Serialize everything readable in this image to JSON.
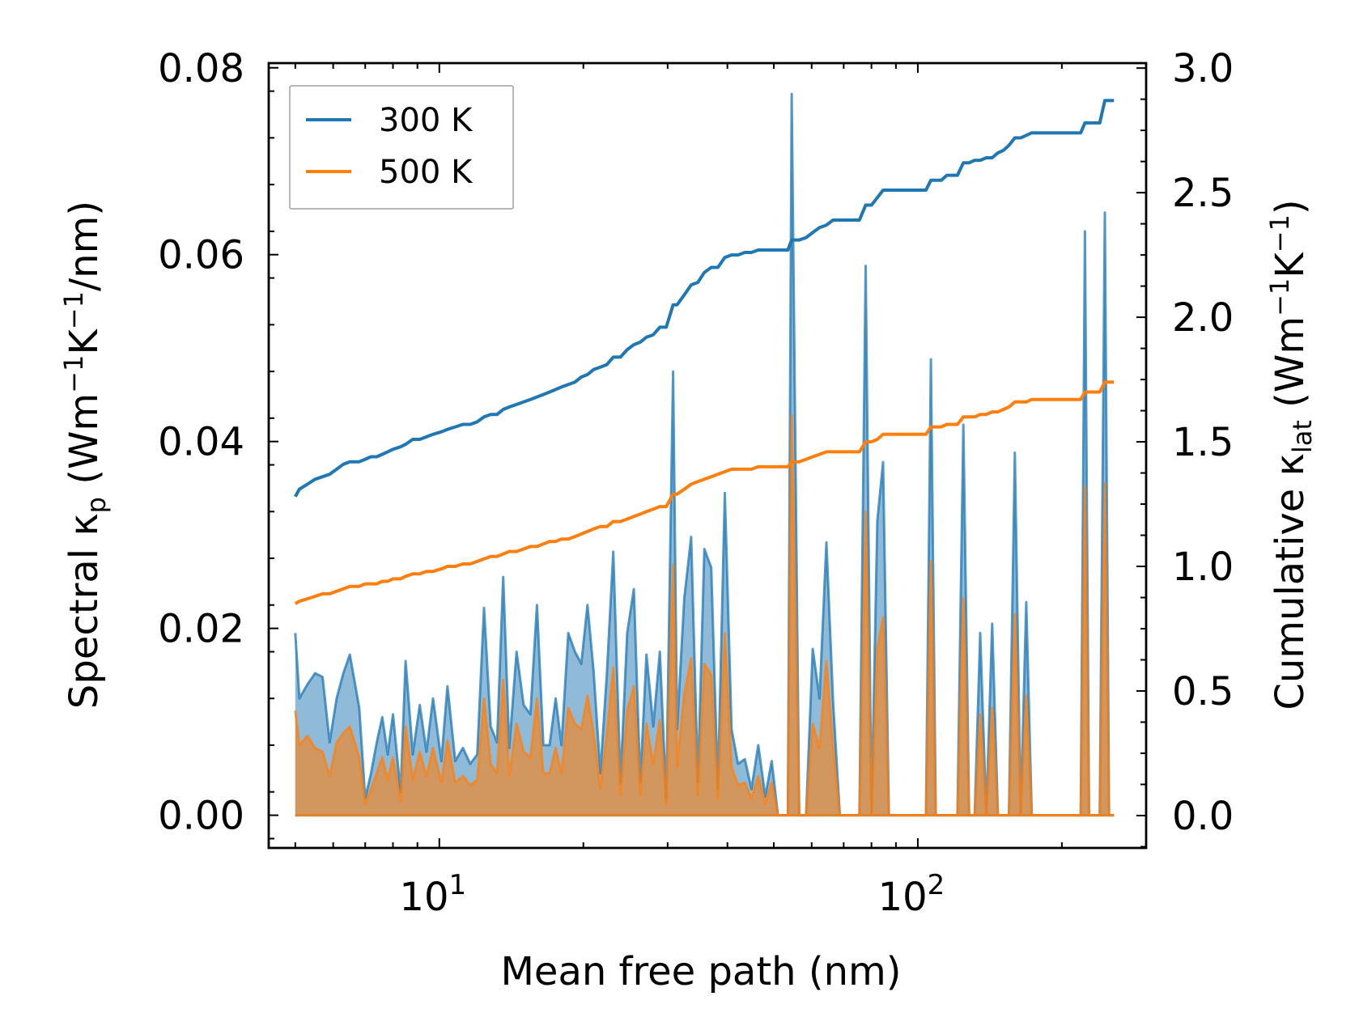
{
  "chart_data": {
    "type": "line",
    "xscale": "log",
    "xlabel": "Mean free path (nm)",
    "ylabel_left": {
      "pre": "Spectral κ",
      "sub": "p",
      "post": " (Wm",
      "sup1": "−1",
      "mid": "K",
      "sup2": "−1",
      "tail": "/nm)"
    },
    "ylabel_right": {
      "pre": "Cumulative κ",
      "sub": "lat",
      "post": " (Wm",
      "sup1": "−1",
      "mid": "K",
      "sup2": "−1",
      "tail": ")"
    },
    "xlim": [
      4.4,
      300
    ],
    "ylim_left": [
      -0.0035,
      0.0805
    ],
    "ylim_right": [
      -0.13,
      3.02
    ],
    "x_ticks": [
      {
        "base": "10",
        "exp": "1",
        "value": 10
      },
      {
        "base": "10",
        "exp": "2",
        "value": 100
      }
    ],
    "y_left_ticks": [
      {
        "label": "0.00",
        "value": 0.0
      },
      {
        "label": "0.02",
        "value": 0.02
      },
      {
        "label": "0.04",
        "value": 0.04
      },
      {
        "label": "0.06",
        "value": 0.06
      },
      {
        "label": "0.08",
        "value": 0.08
      }
    ],
    "y_right_ticks": [
      {
        "label": "0.0",
        "value": 0.0
      },
      {
        "label": "0.5",
        "value": 0.5
      },
      {
        "label": "1.0",
        "value": 1.0
      },
      {
        "label": "1.5",
        "value": 1.5
      },
      {
        "label": "2.0",
        "value": 2.0
      },
      {
        "label": "2.5",
        "value": 2.5
      },
      {
        "label": "3.0",
        "value": 3.0
      }
    ],
    "legend": {
      "position": "upper-left",
      "entries": [
        {
          "label": "300 K",
          "color": "#1f77b4"
        },
        {
          "label": "500 K",
          "color": "#ff7f0e"
        }
      ]
    },
    "series": [
      {
        "name": "300 K",
        "color": "#1f77b4",
        "axis": "left",
        "kind": "spectral-filled",
        "x": [
          5.0,
          5.1,
          5.3,
          5.5,
          5.7,
          5.9,
          6.1,
          6.3,
          6.5,
          6.8,
          7.0,
          7.2,
          7.4,
          7.6,
          7.8,
          8.0,
          8.3,
          8.5,
          8.8,
          9.1,
          9.4,
          9.7,
          10.1,
          10.4,
          10.8,
          11.2,
          11.6,
          12.0,
          12.4,
          12.8,
          13.2,
          13.6,
          14.0,
          14.5,
          15.0,
          15.5,
          16.0,
          16.5,
          17.0,
          17.5,
          18.0,
          18.6,
          19.2,
          19.8,
          20.4,
          21.0,
          21.7,
          22.4,
          23.1,
          23.9,
          24.7,
          25.5,
          26.3,
          27.1,
          28.0,
          28.9,
          29.8,
          30.8,
          31.4,
          32.5,
          33.6,
          34.7,
          35.8,
          37.0,
          38.2,
          39.5,
          40.8,
          42.1,
          43.5,
          44.9,
          46.4,
          48.0,
          49.5,
          51.0,
          52.7,
          53.5,
          54.5,
          56.5,
          58.4,
          60.3,
          62.3,
          64.4,
          66.5,
          68.7,
          71.0,
          73.3,
          75.5,
          77.8,
          80.0,
          82.3,
          84.6,
          87.0,
          89.5,
          92.0,
          95.0,
          98.0,
          101.0,
          104.0,
          106.5,
          109.0,
          112.0,
          115.0,
          118.0,
          121.0,
          124.5,
          128.0,
          131.5,
          135.0,
          139.0,
          143.0,
          147.0,
          151.0,
          155.0,
          159.5,
          164.0,
          168.5,
          173.0,
          178.0,
          183.0,
          189.0,
          195.0,
          201.0,
          207.0,
          213.0,
          219.0,
          223.5,
          228.0,
          234.0,
          240.0,
          246.0,
          251.0,
          257.0
        ],
        "spectral": [
          0.0195,
          0.0125,
          0.014,
          0.0152,
          0.0148,
          0.0078,
          0.0125,
          0.0152,
          0.0172,
          0.0115,
          0.0018,
          0.0045,
          0.0078,
          0.0105,
          0.0065,
          0.0108,
          0.0025,
          0.0165,
          0.0065,
          0.0118,
          0.0068,
          0.0125,
          0.0058,
          0.0138,
          0.0058,
          0.0072,
          0.0055,
          0.0065,
          0.0222,
          0.0095,
          0.0078,
          0.0255,
          0.0072,
          0.0175,
          0.0118,
          0.0108,
          0.0225,
          0.0075,
          0.0075,
          0.0125,
          0.0075,
          0.0195,
          0.0175,
          0.0162,
          0.0225,
          0.0155,
          0.0045,
          0.0152,
          0.0282,
          0.0035,
          0.0195,
          0.0242,
          0.0035,
          0.0172,
          0.0095,
          0.0175,
          0.0018,
          0.0475,
          0.0092,
          0.0232,
          0.0298,
          0.0035,
          0.0285,
          0.0265,
          0.0028,
          0.0345,
          0.0092,
          0.0055,
          0.006,
          0.0028,
          0.0075,
          0.002,
          0.0058,
          0.0,
          0.0,
          0.0,
          0.0772,
          0.0,
          0.0,
          0.0178,
          0.0125,
          0.0292,
          0.0122,
          0.0,
          0.0,
          0.0,
          0.0,
          0.0588,
          0.0,
          0.0315,
          0.0378,
          0.0,
          0.0,
          0.0,
          0.0,
          0.0,
          0.0,
          0.0,
          0.0488,
          0.0,
          0.0,
          0.0,
          0.0,
          0.0,
          0.0418,
          0.0,
          0.0,
          0.0195,
          0.0,
          0.0205,
          0.0,
          0.0,
          0.0,
          0.0388,
          0.0,
          0.0228,
          0.0,
          0.0,
          0.0,
          0.0,
          0.0,
          0.0,
          0.0,
          0.0,
          0.0,
          0.0625,
          0.0,
          0.0,
          0.0,
          0.0645,
          0.0,
          0.0
        ],
        "cumulative": [
          1.28,
          1.31,
          1.33,
          1.35,
          1.36,
          1.37,
          1.39,
          1.41,
          1.42,
          1.42,
          1.43,
          1.44,
          1.44,
          1.45,
          1.46,
          1.47,
          1.48,
          1.49,
          1.51,
          1.51,
          1.52,
          1.53,
          1.54,
          1.55,
          1.56,
          1.57,
          1.57,
          1.58,
          1.6,
          1.61,
          1.61,
          1.63,
          1.64,
          1.65,
          1.66,
          1.67,
          1.68,
          1.69,
          1.7,
          1.71,
          1.72,
          1.73,
          1.74,
          1.76,
          1.77,
          1.79,
          1.8,
          1.81,
          1.84,
          1.84,
          1.87,
          1.89,
          1.9,
          1.92,
          1.93,
          1.96,
          1.96,
          2.05,
          2.05,
          2.09,
          2.13,
          2.14,
          2.18,
          2.2,
          2.2,
          2.24,
          2.25,
          2.25,
          2.26,
          2.26,
          2.27,
          2.27,
          2.27,
          2.27,
          2.27,
          2.27,
          2.31,
          2.31,
          2.32,
          2.34,
          2.36,
          2.37,
          2.39,
          2.39,
          2.39,
          2.39,
          2.39,
          2.45,
          2.45,
          2.48,
          2.51,
          2.51,
          2.51,
          2.51,
          2.51,
          2.51,
          2.51,
          2.51,
          2.55,
          2.55,
          2.55,
          2.57,
          2.57,
          2.57,
          2.62,
          2.62,
          2.63,
          2.63,
          2.64,
          2.64,
          2.66,
          2.67,
          2.69,
          2.72,
          2.72,
          2.73,
          2.74,
          2.74,
          2.74,
          2.74,
          2.74,
          2.74,
          2.74,
          2.74,
          2.74,
          2.78,
          2.78,
          2.78,
          2.78,
          2.87,
          2.87,
          2.87
        ]
      },
      {
        "name": "500 K",
        "color": "#ff7f0e",
        "axis": "left",
        "kind": "spectral-filled",
        "x": [
          5.0,
          5.1,
          5.3,
          5.5,
          5.7,
          5.9,
          6.1,
          6.3,
          6.5,
          6.8,
          7.0,
          7.2,
          7.4,
          7.6,
          7.8,
          8.0,
          8.3,
          8.5,
          8.8,
          9.1,
          9.4,
          9.7,
          10.1,
          10.4,
          10.8,
          11.2,
          11.6,
          12.0,
          12.4,
          12.8,
          13.2,
          13.6,
          14.0,
          14.5,
          15.0,
          15.5,
          16.0,
          16.5,
          17.0,
          17.5,
          18.0,
          18.6,
          19.2,
          19.8,
          20.4,
          21.0,
          21.7,
          22.4,
          23.1,
          23.9,
          24.7,
          25.5,
          26.3,
          27.1,
          28.0,
          28.9,
          29.8,
          30.8,
          31.4,
          32.5,
          33.6,
          34.7,
          35.8,
          37.0,
          38.2,
          39.5,
          40.8,
          42.1,
          43.5,
          44.9,
          46.4,
          48.0,
          49.5,
          51.0,
          52.7,
          53.5,
          54.5,
          56.5,
          58.4,
          60.3,
          62.3,
          64.4,
          66.5,
          68.7,
          71.0,
          73.3,
          75.5,
          77.8,
          80.0,
          82.3,
          84.6,
          87.0,
          89.5,
          92.0,
          95.0,
          98.0,
          101.0,
          104.0,
          106.5,
          109.0,
          112.0,
          115.0,
          118.0,
          121.0,
          124.5,
          128.0,
          131.5,
          135.0,
          139.0,
          143.0,
          147.0,
          151.0,
          155.0,
          159.5,
          164.0,
          168.5,
          173.0,
          178.0,
          183.0,
          189.0,
          195.0,
          201.0,
          207.0,
          213.0,
          219.0,
          223.5,
          228.0,
          234.0,
          240.0,
          246.0,
          251.0,
          257.0
        ],
        "spectral": [
          0.0112,
          0.0075,
          0.0085,
          0.0072,
          0.0068,
          0.0042,
          0.0078,
          0.0088,
          0.0095,
          0.0062,
          0.0012,
          0.0028,
          0.0045,
          0.0062,
          0.0038,
          0.0062,
          0.0015,
          0.0095,
          0.0038,
          0.0068,
          0.0042,
          0.0072,
          0.0035,
          0.008,
          0.0035,
          0.0042,
          0.0032,
          0.0038,
          0.0125,
          0.0055,
          0.0045,
          0.0145,
          0.0042,
          0.0098,
          0.0068,
          0.0062,
          0.0125,
          0.0045,
          0.0045,
          0.0072,
          0.0045,
          0.0115,
          0.0098,
          0.0092,
          0.0128,
          0.0088,
          0.0028,
          0.0088,
          0.0158,
          0.0022,
          0.0112,
          0.0138,
          0.0022,
          0.0098,
          0.0055,
          0.0102,
          0.0012,
          0.0268,
          0.0052,
          0.013,
          0.0168,
          0.0022,
          0.0162,
          0.015,
          0.0018,
          0.0195,
          0.0052,
          0.0032,
          0.0035,
          0.0018,
          0.0042,
          0.0012,
          0.0035,
          0.0,
          0.0,
          0.0,
          0.0428,
          0.0,
          0.0,
          0.0098,
          0.0072,
          0.0165,
          0.0072,
          0.0,
          0.0,
          0.0,
          0.0,
          0.0325,
          0.0,
          0.0178,
          0.0212,
          0.0,
          0.0,
          0.0,
          0.0,
          0.0,
          0.0,
          0.0,
          0.0272,
          0.0,
          0.0,
          0.0,
          0.0,
          0.0,
          0.0232,
          0.0,
          0.0,
          0.0108,
          0.0,
          0.0115,
          0.0,
          0.0,
          0.0,
          0.0215,
          0.0,
          0.0128,
          0.0,
          0.0,
          0.0,
          0.0,
          0.0,
          0.0,
          0.0,
          0.0,
          0.0,
          0.0352,
          0.0,
          0.0,
          0.0,
          0.0355,
          0.0,
          0.0
        ],
        "cumulative": [
          0.85,
          0.86,
          0.87,
          0.88,
          0.89,
          0.89,
          0.9,
          0.91,
          0.92,
          0.92,
          0.93,
          0.93,
          0.93,
          0.94,
          0.94,
          0.95,
          0.95,
          0.96,
          0.97,
          0.97,
          0.98,
          0.98,
          0.99,
          1.0,
          1.0,
          1.01,
          1.01,
          1.02,
          1.03,
          1.04,
          1.04,
          1.05,
          1.06,
          1.06,
          1.07,
          1.08,
          1.08,
          1.09,
          1.1,
          1.1,
          1.11,
          1.11,
          1.12,
          1.13,
          1.14,
          1.15,
          1.16,
          1.16,
          1.18,
          1.18,
          1.19,
          1.2,
          1.21,
          1.22,
          1.23,
          1.24,
          1.24,
          1.29,
          1.29,
          1.31,
          1.33,
          1.34,
          1.35,
          1.36,
          1.37,
          1.38,
          1.39,
          1.39,
          1.39,
          1.39,
          1.4,
          1.4,
          1.4,
          1.4,
          1.4,
          1.4,
          1.42,
          1.42,
          1.43,
          1.44,
          1.45,
          1.46,
          1.46,
          1.46,
          1.46,
          1.46,
          1.46,
          1.5,
          1.5,
          1.51,
          1.53,
          1.53,
          1.53,
          1.53,
          1.53,
          1.53,
          1.53,
          1.53,
          1.56,
          1.56,
          1.56,
          1.57,
          1.57,
          1.57,
          1.6,
          1.6,
          1.6,
          1.61,
          1.61,
          1.62,
          1.62,
          1.63,
          1.64,
          1.66,
          1.66,
          1.66,
          1.67,
          1.67,
          1.67,
          1.67,
          1.67,
          1.67,
          1.67,
          1.67,
          1.67,
          1.7,
          1.7,
          1.7,
          1.7,
          1.74,
          1.74,
          1.74
        ]
      }
    ]
  }
}
